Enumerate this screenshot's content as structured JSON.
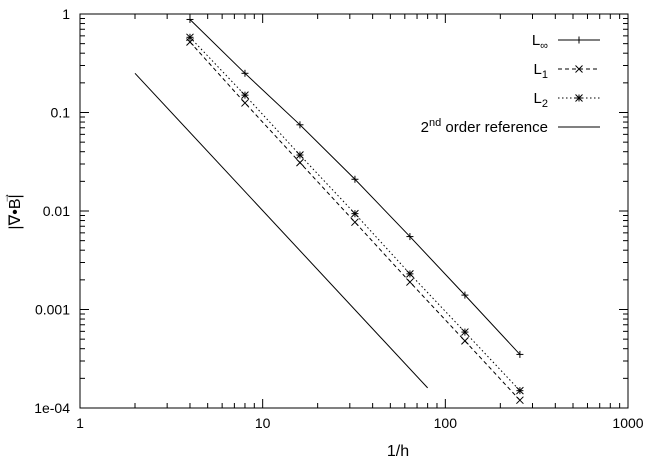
{
  "chart_data": {
    "type": "line",
    "xscale": "log",
    "yscale": "log",
    "xlim": [
      1,
      1000
    ],
    "ylim": [
      0.0001,
      1
    ],
    "xlabel": "1/h",
    "ylabel": "|∇•B|",
    "ylabel_vector_arrow": "→",
    "x_ticks": [
      1,
      10,
      100,
      1000
    ],
    "x_tick_labels": [
      "1",
      "10",
      "100",
      "1000"
    ],
    "y_ticks": [
      0.0001,
      0.001,
      0.01,
      0.1,
      1
    ],
    "y_tick_labels": [
      "1e-04",
      "0.001",
      "0.01",
      "0.1",
      "1"
    ],
    "grid": false,
    "legend_position": "top-right",
    "series": [
      {
        "name": "L∞",
        "name_base": "L",
        "name_sub": "∞",
        "line_style": "solid",
        "marker": "plus",
        "x": [
          4,
          8,
          16,
          32,
          64,
          128,
          256
        ],
        "y": [
          0.88,
          0.25,
          0.075,
          0.021,
          0.0055,
          0.0014,
          0.00035
        ]
      },
      {
        "name": "L1",
        "name_base": "L",
        "name_sub": "1",
        "line_style": "dashed",
        "marker": "cross",
        "x": [
          4,
          8,
          16,
          32,
          64,
          128,
          256
        ],
        "y": [
          0.52,
          0.125,
          0.031,
          0.0077,
          0.0019,
          0.00048,
          0.00012
        ]
      },
      {
        "name": "L2",
        "name_base": "L",
        "name_sub": "2",
        "line_style": "dotted",
        "marker": "star",
        "x": [
          4,
          8,
          16,
          32,
          64,
          128,
          256
        ],
        "y": [
          0.58,
          0.15,
          0.037,
          0.0094,
          0.0023,
          0.00059,
          0.00015
        ]
      },
      {
        "name": "2nd order reference",
        "name_base": "2",
        "name_sup": "nd",
        "name_rest": " order reference",
        "line_style": "solid",
        "marker": "none",
        "x": [
          2,
          80
        ],
        "y": [
          0.25,
          0.00016
        ]
      }
    ]
  }
}
